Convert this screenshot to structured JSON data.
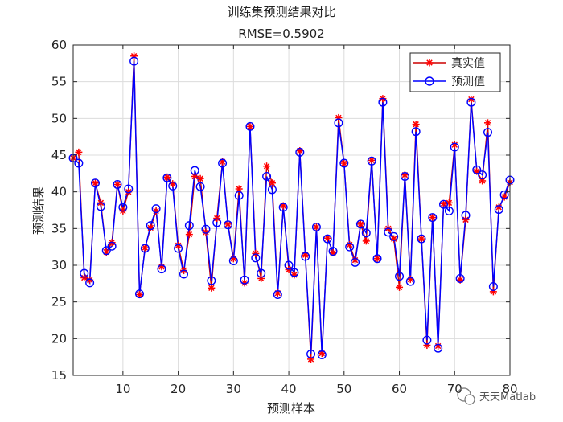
{
  "chart_data": {
    "type": "line",
    "title": "训练集预测结果对比",
    "subtitle": "RMSE=0.5902",
    "xlabel": "预测样本",
    "ylabel": "预测结果",
    "xlim": [
      1,
      80
    ],
    "ylim": [
      15,
      60
    ],
    "xticks": [
      10,
      20,
      30,
      40,
      50,
      60,
      70,
      80
    ],
    "yticks": [
      15,
      20,
      25,
      30,
      35,
      40,
      45,
      50,
      55,
      60
    ],
    "grid": true,
    "legend_position": "top-right",
    "x": [
      1,
      2,
      3,
      4,
      5,
      6,
      7,
      8,
      9,
      10,
      11,
      12,
      13,
      14,
      15,
      16,
      17,
      18,
      19,
      20,
      21,
      22,
      23,
      24,
      25,
      26,
      27,
      28,
      29,
      30,
      31,
      32,
      33,
      34,
      35,
      36,
      37,
      38,
      39,
      40,
      41,
      42,
      43,
      44,
      45,
      46,
      47,
      48,
      49,
      50,
      51,
      52,
      53,
      54,
      55,
      56,
      57,
      58,
      59,
      60,
      61,
      62,
      63,
      64,
      65,
      66,
      67,
      68,
      69,
      70,
      71,
      72,
      73,
      74,
      75,
      76,
      77,
      78,
      79,
      80
    ],
    "series": [
      {
        "name": "真实值",
        "color": "#ff0000",
        "line_color": "#cc0000",
        "marker": "asterisk",
        "values": [
          44.6,
          45.4,
          28.3,
          28.0,
          41.2,
          38.5,
          31.8,
          33.1,
          41.0,
          37.4,
          40.0,
          58.5,
          26.0,
          32.4,
          35.1,
          37.4,
          29.8,
          42.0,
          41.1,
          32.7,
          29.3,
          34.2,
          42.1,
          41.8,
          34.5,
          26.9,
          36.4,
          44.1,
          35.6,
          30.9,
          40.4,
          27.6,
          48.9,
          31.6,
          28.2,
          43.5,
          41.2,
          26.2,
          38.1,
          29.4,
          28.7,
          45.6,
          31.4,
          17.2,
          35.2,
          18.0,
          33.7,
          31.7,
          50.1,
          43.9,
          32.8,
          30.7,
          35.6,
          33.3,
          44.3,
          30.9,
          52.7,
          35.0,
          33.6,
          27.0,
          42.3,
          28.1,
          49.2,
          33.6,
          19.1,
          36.5,
          19.0,
          38.4,
          38.5,
          46.4,
          28.0,
          36.2,
          52.6,
          42.8,
          41.5,
          49.4,
          26.4,
          37.9,
          39.3,
          41.3
        ]
      },
      {
        "name": "预测值",
        "color": "#0000ff",
        "marker": "circle",
        "values": [
          44.6,
          43.9,
          28.9,
          27.6,
          41.2,
          38.0,
          32.0,
          32.6,
          41.0,
          37.9,
          40.4,
          57.8,
          26.1,
          32.3,
          35.4,
          37.7,
          29.5,
          41.9,
          40.8,
          32.3,
          28.8,
          35.4,
          42.9,
          40.7,
          34.9,
          27.9,
          35.8,
          43.9,
          35.5,
          30.6,
          39.5,
          28.0,
          48.9,
          31.0,
          28.9,
          42.1,
          40.3,
          26.0,
          37.9,
          30.0,
          29.0,
          45.4,
          31.2,
          17.9,
          35.2,
          17.8,
          33.6,
          31.9,
          49.4,
          43.9,
          32.5,
          30.4,
          35.6,
          34.4,
          44.2,
          30.9,
          52.2,
          34.5,
          33.9,
          28.5,
          42.1,
          27.8,
          48.2,
          33.6,
          19.8,
          36.5,
          18.7,
          38.3,
          37.4,
          46.1,
          28.2,
          36.8,
          52.2,
          43.0,
          42.3,
          48.1,
          27.1,
          37.6,
          39.6,
          41.6
        ]
      }
    ]
  },
  "watermark": {
    "text": "天天Matlab"
  }
}
